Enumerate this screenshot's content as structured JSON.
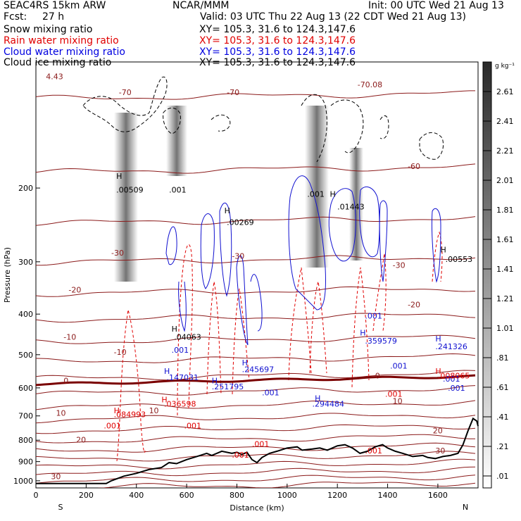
{
  "header": {
    "model": "SEAC4RS 15km ARW",
    "forecast_label": "Fcst:",
    "forecast_value": "27 h",
    "center": "NCAR/MMM",
    "init": "Init: 00 UTC Wed 21 Aug 13",
    "valid": "Valid: 03 UTC Thu 22 Aug 13 (22 CDT Wed 21 Aug 13)",
    "fields": [
      {
        "name": "Snow mixing ratio",
        "xy": "XY= 105.3, 31.6 to 124.3,147.6",
        "color": "#000000"
      },
      {
        "name": "Rain water mixing ratio",
        "xy": "XY= 105.3, 31.6 to 124.3,147.6",
        "color": "#e00000"
      },
      {
        "name": "Cloud water mixing ratio",
        "xy": "XY= 105.3, 31.6 to 124.3,147.6",
        "color": "#0000e0"
      },
      {
        "name": "Cloud ice mixing ratio",
        "xy": "XY= 105.3, 31.6 to 124.3,147.6",
        "color": "#000000"
      }
    ]
  },
  "colors": {
    "temp": "#8b1a1a",
    "rain": "#e00000",
    "cloud": "#1010d0",
    "ice": "#000000",
    "zero": "#7a0000"
  },
  "chart_data": {
    "type": "heatmap",
    "xlabel": "Distance (km)",
    "ylabel": "Pressure (hPa)",
    "xlim": [
      0,
      1760
    ],
    "ylim": [
      1040,
      100
    ],
    "y_scale": "log",
    "x_ticks": [
      "0",
      "200",
      "400",
      "600",
      "800",
      "1000",
      "1200",
      "1400",
      "1600"
    ],
    "y_ticks": [
      "200",
      "300",
      "400",
      "500",
      "600",
      "700",
      "800",
      "900",
      "1000"
    ],
    "endpoints": {
      "left": "S",
      "right": "N"
    },
    "colorbar": {
      "unit": "g kg⁻¹",
      "levels": [
        "2.61",
        "2.41",
        "2.21",
        "2.01",
        "1.81",
        "1.61",
        "1.41",
        "1.21",
        "1.01",
        ".81",
        ".61",
        ".41",
        ".21",
        ".01"
      ]
    },
    "temperature_labels": [
      {
        "x": 40,
        "p": 110,
        "text": "4.43"
      },
      {
        "x": 330,
        "p": 120,
        "text": "-70"
      },
      {
        "x": 760,
        "p": 120,
        "text": "-70"
      },
      {
        "x": 1280,
        "p": 115,
        "text": "-70.08"
      },
      {
        "x": 1480,
        "p": 180,
        "text": "-60"
      },
      {
        "x": 300,
        "p": 290,
        "text": "-30"
      },
      {
        "x": 780,
        "p": 295,
        "text": "-30"
      },
      {
        "x": 1420,
        "p": 310,
        "text": "-30"
      },
      {
        "x": 130,
        "p": 355,
        "text": "-20"
      },
      {
        "x": 1480,
        "p": 385,
        "text": "-20"
      },
      {
        "x": 110,
        "p": 460,
        "text": "-10"
      },
      {
        "x": 310,
        "p": 500,
        "text": "-10"
      },
      {
        "x": 110,
        "p": 585,
        "text": "0"
      },
      {
        "x": 1350,
        "p": 570,
        "text": "0"
      },
      {
        "x": 1420,
        "p": 655,
        "text": "10"
      },
      {
        "x": 80,
        "p": 700,
        "text": "10"
      },
      {
        "x": 450,
        "p": 690,
        "text": "10"
      },
      {
        "x": 160,
        "p": 810,
        "text": "20"
      },
      {
        "x": 1580,
        "p": 770,
        "text": "20"
      },
      {
        "x": 1590,
        "p": 860,
        "text": "30"
      },
      {
        "x": 60,
        "p": 990,
        "text": "30"
      }
    ],
    "ice_labels": [
      {
        "x": 320,
        "p": 190,
        "text": "H"
      },
      {
        "x": 320,
        "p": 205,
        "text": ".00509"
      },
      {
        "x": 530,
        "p": 205,
        "text": ".001"
      },
      {
        "x": 750,
        "p": 230,
        "text": "H"
      },
      {
        "x": 760,
        "p": 245,
        "text": ".00269"
      },
      {
        "x": 1080,
        "p": 210,
        "text": ".001"
      },
      {
        "x": 1170,
        "p": 210,
        "text": "H"
      },
      {
        "x": 1200,
        "p": 225,
        "text": ".01443"
      },
      {
        "x": 1610,
        "p": 285,
        "text": "H"
      },
      {
        "x": 1630,
        "p": 300,
        "text": ".00553"
      }
    ],
    "snow_labels": [
      {
        "x": 540,
        "p": 440,
        "text": "H"
      },
      {
        "x": 550,
        "p": 460,
        "text": ".04063"
      }
    ],
    "cloud_labels": [
      {
        "x": 540,
        "p": 495,
        "text": ".001"
      },
      {
        "x": 510,
        "p": 555,
        "text": "H"
      },
      {
        "x": 520,
        "p": 575,
        "text": ".147031"
      },
      {
        "x": 820,
        "p": 530,
        "text": "H"
      },
      {
        "x": 820,
        "p": 550,
        "text": ".245697"
      },
      {
        "x": 700,
        "p": 585,
        "text": "H"
      },
      {
        "x": 700,
        "p": 605,
        "text": ".251795"
      },
      {
        "x": 900,
        "p": 625,
        "text": ".001"
      },
      {
        "x": 1110,
        "p": 645,
        "text": "H"
      },
      {
        "x": 1100,
        "p": 665,
        "text": ".294484"
      },
      {
        "x": 1310,
        "p": 410,
        "text": ".001"
      },
      {
        "x": 1290,
        "p": 450,
        "text": "H"
      },
      {
        "x": 1310,
        "p": 470,
        "text": ".359579"
      },
      {
        "x": 1410,
        "p": 540,
        "text": ".001"
      },
      {
        "x": 1590,
        "p": 465,
        "text": "H"
      },
      {
        "x": 1590,
        "p": 485,
        "text": ".241326"
      },
      {
        "x": 1620,
        "p": 580,
        "text": ".001"
      },
      {
        "x": 1640,
        "p": 610,
        "text": ".001"
      }
    ],
    "rain_labels": [
      {
        "x": 310,
        "p": 690,
        "text": "H"
      },
      {
        "x": 310,
        "p": 705,
        "text": ".084993"
      },
      {
        "x": 500,
        "p": 650,
        "text": "H"
      },
      {
        "x": 510,
        "p": 665,
        "text": ".036598"
      },
      {
        "x": 270,
        "p": 750,
        "text": ".001"
      },
      {
        "x": 590,
        "p": 750,
        "text": ".001"
      },
      {
        "x": 860,
        "p": 830,
        "text": ".001"
      },
      {
        "x": 780,
        "p": 880,
        "text": ".001"
      },
      {
        "x": 1390,
        "p": 630,
        "text": ".001"
      },
      {
        "x": 1310,
        "p": 860,
        "text": ".001"
      },
      {
        "x": 1590,
        "p": 555,
        "text": "H"
      },
      {
        "x": 1600,
        "p": 570,
        "text": ".008065"
      }
    ]
  }
}
